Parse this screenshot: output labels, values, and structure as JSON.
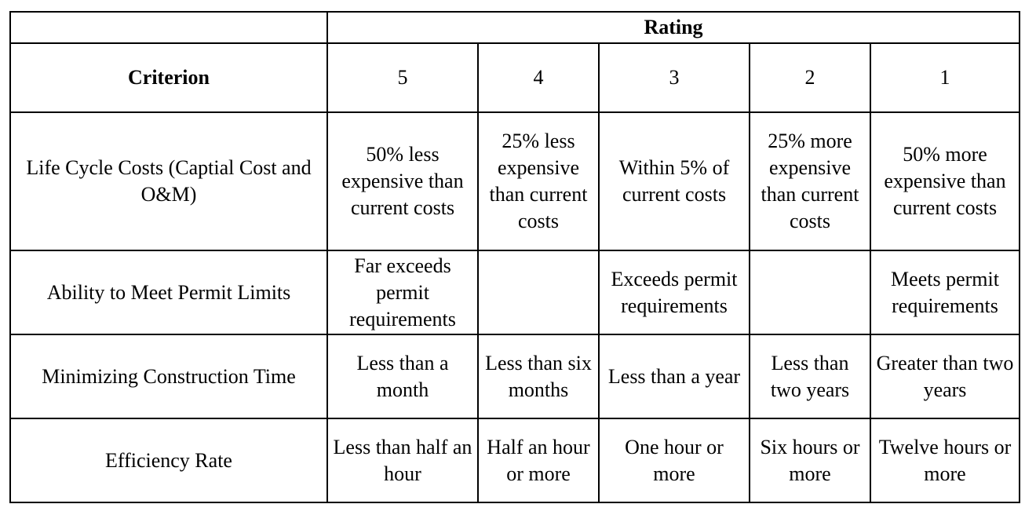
{
  "table": {
    "rating_header": "Rating",
    "criterion_header": "Criterion",
    "ratings": [
      "5",
      "4",
      "3",
      "2",
      "1"
    ],
    "rows": [
      {
        "criterion": "Life Cycle Costs (Captial Cost and O&M)",
        "cells": [
          "50% less expensive than current costs",
          "25% less expensive than current costs",
          "Within 5% of current costs",
          "25% more expensive than current costs",
          "50% more expensive than current costs"
        ]
      },
      {
        "criterion": "Ability to Meet Permit Limits",
        "cells": [
          "Far exceeds permit requirements",
          "",
          "Exceeds permit requirements",
          "",
          "Meets permit requirements"
        ]
      },
      {
        "criterion": "Minimizing Construction Time",
        "cells": [
          "Less than a month",
          "Less than six months",
          "Less than a year",
          "Less than two years",
          "Greater than two years"
        ]
      },
      {
        "criterion": "Efficiency Rate",
        "cells": [
          "Less than half an hour",
          "Half an hour or more",
          "One hour or more",
          "Six hours or more",
          "Twelve hours or more"
        ]
      }
    ]
  }
}
